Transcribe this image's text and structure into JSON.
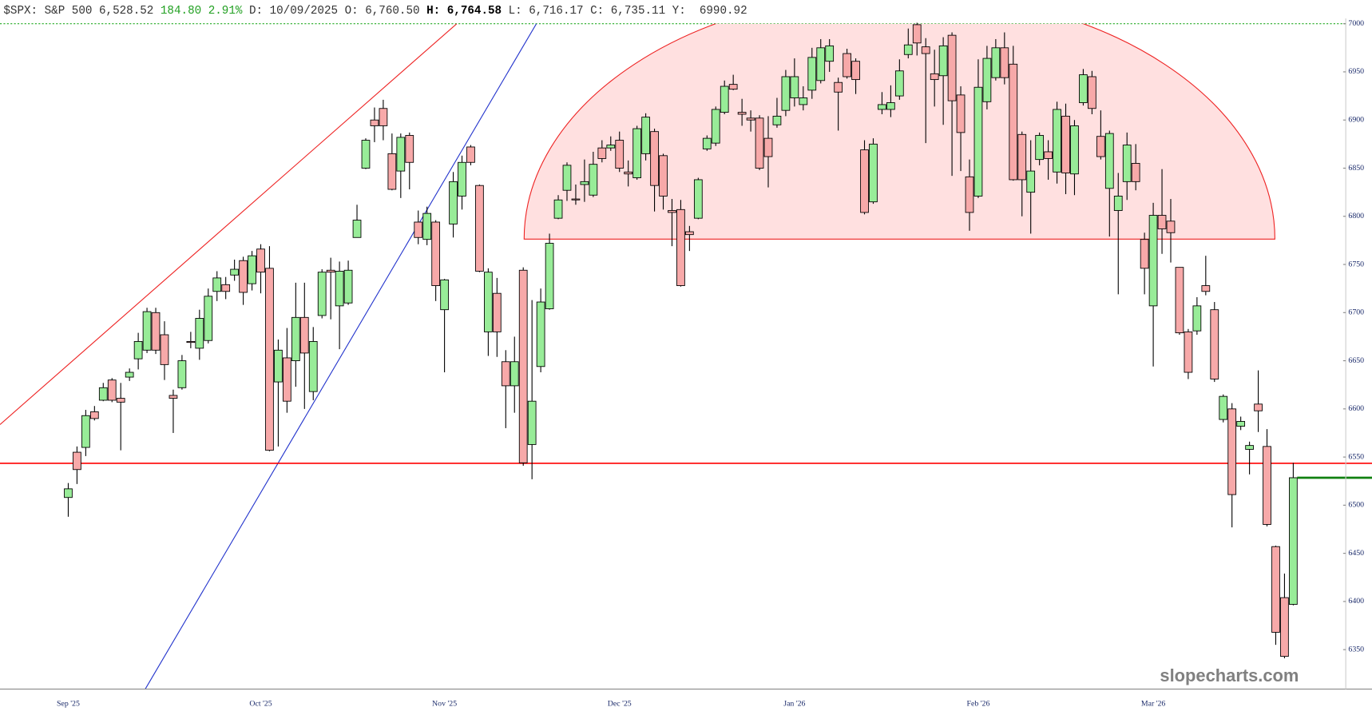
{
  "chart_data": {
    "type": "candlestick",
    "header": {
      "symbol": "$SPX: S&P 500",
      "last": "6,528.52",
      "change": "184.80",
      "change_pct": "2.91%",
      "date": "D: 10/09/2025",
      "open": "O: 6,760.50",
      "high": "H: 6,764.58",
      "low": "L: 6,716.17",
      "close": "C: 6,735.11",
      "prev": "Y:  6990.92"
    },
    "watermark": "slopecharts.com",
    "categories": [
      "Sep '25",
      null,
      null,
      null,
      null,
      null,
      null,
      null,
      null,
      null,
      null,
      null,
      null,
      null,
      null,
      null,
      null,
      null,
      null,
      null,
      null,
      null,
      "Oct '25",
      null,
      null,
      null,
      null,
      null,
      null,
      null,
      null,
      null,
      null,
      null,
      null,
      null,
      null,
      null,
      null,
      null,
      null,
      null,
      null,
      "Nov '25",
      null,
      null,
      null,
      null,
      null,
      null,
      null,
      null,
      null,
      null,
      null,
      null,
      null,
      null,
      null,
      null,
      null,
      null,
      null,
      "Dec '25",
      null,
      null,
      null,
      null,
      null,
      null,
      null,
      null,
      null,
      null,
      null,
      null,
      null,
      null,
      null,
      null,
      null,
      null,
      null,
      "Jan '26",
      null,
      null,
      null,
      null,
      null,
      null,
      null,
      null,
      null,
      null,
      null,
      null,
      null,
      null,
      null,
      null,
      null,
      null,
      null,
      null,
      "Feb '26",
      null,
      null,
      null,
      null,
      null,
      null,
      null,
      null,
      null,
      null,
      null,
      null,
      null,
      null,
      null,
      null,
      null,
      null,
      null,
      "Mar '26",
      null,
      null,
      null,
      null,
      null,
      null,
      null,
      null,
      null,
      null,
      null,
      null,
      null,
      null,
      null,
      null
    ],
    "open": [
      6508,
      6555,
      6560,
      6597,
      6609,
      6630,
      6611,
      6633,
      6652,
      6661,
      6700,
      6677,
      6614,
      6622,
      6670,
      6663,
      6671,
      6722,
      6729,
      6739,
      6754,
      6730,
      6766,
      6746,
      6628,
      6653,
      6650,
      6695,
      6618,
      6697,
      6744,
      6707,
      6710,
      6778,
      6850,
      6900,
      6912,
      6865,
      6847,
      6884,
      6794,
      6776,
      6794,
      6703,
      6792,
      6821,
      6872,
      6832,
      6680,
      6720,
      6649,
      6624,
      6744,
      6563,
      6644,
      6704,
      6798,
      6827,
      6818,
      6833,
      6822,
      6871,
      6871,
      6879,
      6846,
      6840,
      6865,
      6888,
      6863,
      6806,
      6807,
      6784,
      6798,
      6870,
      6876,
      6908,
      6937,
      6908,
      6902,
      6902,
      6881,
      6895,
      6910,
      6923,
      6916,
      6931,
      6941,
      6961,
      6939,
      6969,
      6961,
      6869,
      6815,
      6911,
      6911,
      6925,
      6968,
      6999,
      6976,
      6948,
      6946,
      6988,
      6926,
      6841,
      6821,
      6919,
      6944,
      6975,
      6958,
      6885,
      6825,
      6859,
      6867,
      6846,
      6904,
      6844,
      6918,
      6945,
      6883,
      6829,
      6806,
      6836,
      6855,
      6776,
      6707,
      6801,
      6795,
      6747,
      6680,
      6681,
      6728,
      6703,
      6589,
      6600,
      6582,
      6558,
      6605,
      6561,
      6457,
      6404,
      6397
    ],
    "high": [
      6523,
      6561,
      6599,
      6603,
      6627,
      6632,
      6627,
      6642,
      6679,
      6705,
      6705,
      6691,
      6620,
      6656,
      6680,
      6703,
      6725,
      6743,
      6737,
      6755,
      6758,
      6764,
      6771,
      6769,
      6672,
      6684,
      6731,
      6731,
      6685,
      6745,
      6757,
      6753,
      6754,
      6812,
      6881,
      6913,
      6921,
      6886,
      6886,
      6887,
      6806,
      6810,
      6796,
      6735,
      6846,
      6863,
      6874,
      6833,
      6746,
      6736,
      6661,
      6675,
      6747,
      6713,
      6725,
      6782,
      6822,
      6856,
      6833,
      6859,
      6867,
      6879,
      6883,
      6888,
      6858,
      6894,
      6907,
      6891,
      6865,
      6818,
      6817,
      6790,
      6840,
      6884,
      6914,
      6941,
      6947,
      6922,
      6910,
      6905,
      6904,
      6923,
      6952,
      6964,
      6935,
      6975,
      6984,
      6984,
      6944,
      6974,
      6964,
      6879,
      6881,
      6929,
      6936,
      6963,
      6995,
      7001,
      6985,
      6973,
      6986,
      6991,
      6935,
      6859,
      6963,
      6977,
      6984,
      6991,
      6977,
      6888,
      6879,
      6887,
      6879,
      6919,
      6917,
      6900,
      6953,
      6951,
      6910,
      6889,
      6845,
      6887,
      6875,
      6783,
      6814,
      6849,
      6818,
      6747,
      6683,
      6716,
      6759,
      6711,
      6615,
      6606,
      6592,
      6566,
      6640,
      6579,
      6458,
      6429,
      6544
    ],
    "low": [
      6488,
      6522,
      6551,
      6588,
      6608,
      6607,
      6557,
      6629,
      6641,
      6658,
      6657,
      6630,
      6575,
      6620,
      6663,
      6651,
      6668,
      6712,
      6714,
      6733,
      6708,
      6723,
      6720,
      6556,
      6561,
      6596,
      6623,
      6600,
      6609,
      6694,
      6693,
      6662,
      6708,
      6778,
      6849,
      6877,
      6879,
      6827,
      6819,
      6828,
      6771,
      6770,
      6712,
      6638,
      6778,
      6807,
      6853,
      6742,
      6655,
      6654,
      6580,
      6596,
      6541,
      6527,
      6638,
      6703,
      6797,
      6816,
      6812,
      6815,
      6820,
      6856,
      6868,
      6846,
      6831,
      6838,
      6858,
      6805,
      6807,
      6769,
      6727,
      6764,
      6797,
      6868,
      6873,
      6906,
      6931,
      6894,
      6888,
      6848,
      6830,
      6892,
      6904,
      6914,
      6910,
      6922,
      6938,
      6950,
      6889,
      6943,
      6927,
      6802,
      6813,
      6906,
      6903,
      6921,
      6964,
      6967,
      6876,
      6914,
      6895,
      6842,
      6847,
      6785,
      6819,
      6911,
      6941,
      6937,
      6837,
      6800,
      6782,
      6853,
      6838,
      6834,
      6823,
      6822,
      6915,
      6906,
      6859,
      6779,
      6719,
      6817,
      6827,
      6719,
      6644,
      6761,
      6752,
      6677,
      6631,
      6677,
      6718,
      6628,
      6586,
      6477,
      6578,
      6532,
      6576,
      6478,
      6355,
      6341,
      6396
    ],
    "close": [
      6517,
      6537,
      6593,
      6590,
      6622,
      6609,
      6607,
      6638,
      6670,
      6701,
      6661,
      6646,
      6611,
      6650,
      6669,
      6694,
      6717,
      6736,
      6722,
      6745,
      6721,
      6759,
      6742,
      6557,
      6661,
      6608,
      6695,
      6658,
      6670,
      6742,
      6742,
      6743,
      6744,
      6796,
      6879,
      6894,
      6894,
      6828,
      6882,
      6856,
      6778,
      6803,
      6728,
      6734,
      6836,
      6856,
      6856,
      6743,
      6742,
      6680,
      6624,
      6649,
      6544,
      6608,
      6711,
      6772,
      6817,
      6853,
      6817,
      6836,
      6854,
      6860,
      6874,
      6850,
      6844,
      6891,
      6903,
      6832,
      6821,
      6804,
      6728,
      6781,
      6838,
      6881,
      6911,
      6935,
      6932,
      6906,
      6900,
      6850,
      6862,
      6904,
      6945,
      6945,
      6923,
      6965,
      6975,
      6977,
      6929,
      6945,
      6942,
      6804,
      6875,
      6916,
      6918,
      6951,
      6978,
      6980,
      6969,
      6942,
      6977,
      6920,
      6887,
      6804,
      6934,
      6964,
      6975,
      6944,
      6838,
      6838,
      6847,
      6884,
      6860,
      6911,
      6845,
      6894,
      6947,
      6912,
      6862,
      6886,
      6821,
      6874,
      6836,
      6746,
      6801,
      6787,
      6783,
      6679,
      6638,
      6707,
      6722,
      6631,
      6613,
      6511,
      6587,
      6562,
      6598,
      6480,
      6368,
      6343,
      6528.52
    ],
    "up_color": "#98ec98",
    "down_color": "#f7a9a9",
    "levels": [
      {
        "value": 6543.5,
        "color": "#ff0000"
      }
    ],
    "ylim": [
      6309,
      7005
    ],
    "yticks": [
      6350,
      6400,
      6450,
      6500,
      6550,
      6600,
      6650,
      6700,
      6750,
      6800,
      6850,
      6900,
      6950,
      7000
    ]
  }
}
